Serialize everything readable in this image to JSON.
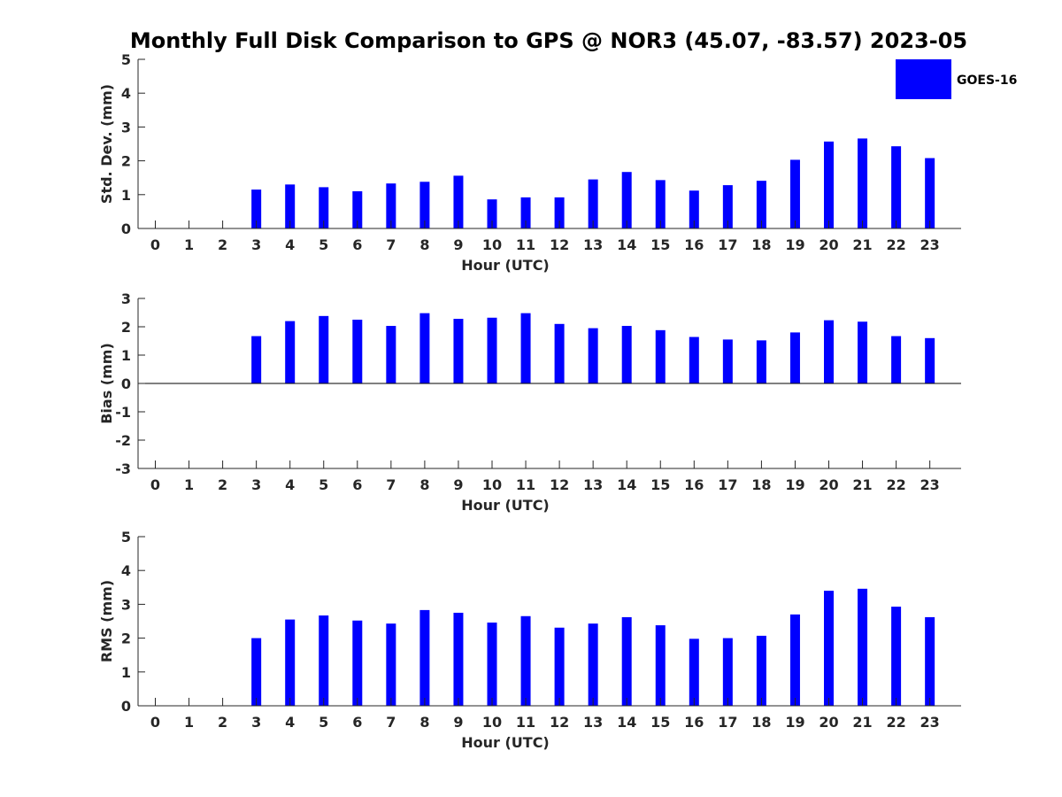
{
  "title": "Monthly Full Disk Comparison to GPS @ NOR3 (45.07, -83.57) 2023-05",
  "colors": {
    "bar": "#0000ff",
    "axis": "#262626"
  },
  "legend": {
    "label": "GOES-16",
    "placement": "top-right"
  },
  "chart_data": [
    {
      "type": "bar",
      "ylabel": "Std. Dev. (mm)",
      "xlabel": "Hour (UTC)",
      "ylim": [
        0,
        5
      ],
      "yticks": [
        0,
        1,
        2,
        3,
        4,
        5
      ],
      "x": [
        0,
        1,
        2,
        3,
        4,
        5,
        6,
        7,
        8,
        9,
        10,
        11,
        12,
        13,
        14,
        15,
        16,
        17,
        18,
        19,
        20,
        21,
        22,
        23
      ],
      "series": [
        {
          "name": "GOES-16",
          "values": [
            null,
            null,
            null,
            1.15,
            1.3,
            1.22,
            1.1,
            1.33,
            1.38,
            1.56,
            0.86,
            0.92,
            0.92,
            1.45,
            1.67,
            1.43,
            1.12,
            1.28,
            1.41,
            2.03,
            2.57,
            2.66,
            2.43,
            2.08
          ]
        }
      ]
    },
    {
      "type": "bar",
      "ylabel": "Bias (mm)",
      "xlabel": "Hour (UTC)",
      "ylim": [
        -3,
        3
      ],
      "yticks": [
        -3,
        -2,
        -1,
        0,
        1,
        2,
        3
      ],
      "x": [
        0,
        1,
        2,
        3,
        4,
        5,
        6,
        7,
        8,
        9,
        10,
        11,
        12,
        13,
        14,
        15,
        16,
        17,
        18,
        19,
        20,
        21,
        22,
        23
      ],
      "series": [
        {
          "name": "GOES-16",
          "values": [
            null,
            null,
            null,
            1.67,
            2.2,
            2.38,
            2.25,
            2.03,
            2.48,
            2.28,
            2.32,
            2.48,
            2.1,
            1.95,
            2.03,
            1.88,
            1.64,
            1.55,
            1.52,
            1.8,
            2.23,
            2.18,
            1.67,
            1.6
          ]
        }
      ]
    },
    {
      "type": "bar",
      "ylabel": "RMS (mm)",
      "xlabel": "Hour (UTC)",
      "ylim": [
        0,
        5
      ],
      "yticks": [
        0,
        1,
        2,
        3,
        4,
        5
      ],
      "x": [
        0,
        1,
        2,
        3,
        4,
        5,
        6,
        7,
        8,
        9,
        10,
        11,
        12,
        13,
        14,
        15,
        16,
        17,
        18,
        19,
        20,
        21,
        22,
        23
      ],
      "series": [
        {
          "name": "GOES-16",
          "values": [
            null,
            null,
            null,
            2.0,
            2.55,
            2.67,
            2.52,
            2.43,
            2.83,
            2.75,
            2.46,
            2.65,
            2.31,
            2.43,
            2.62,
            2.38,
            1.98,
            2.0,
            2.07,
            2.7,
            3.4,
            3.46,
            2.93,
            2.62
          ]
        }
      ]
    }
  ]
}
